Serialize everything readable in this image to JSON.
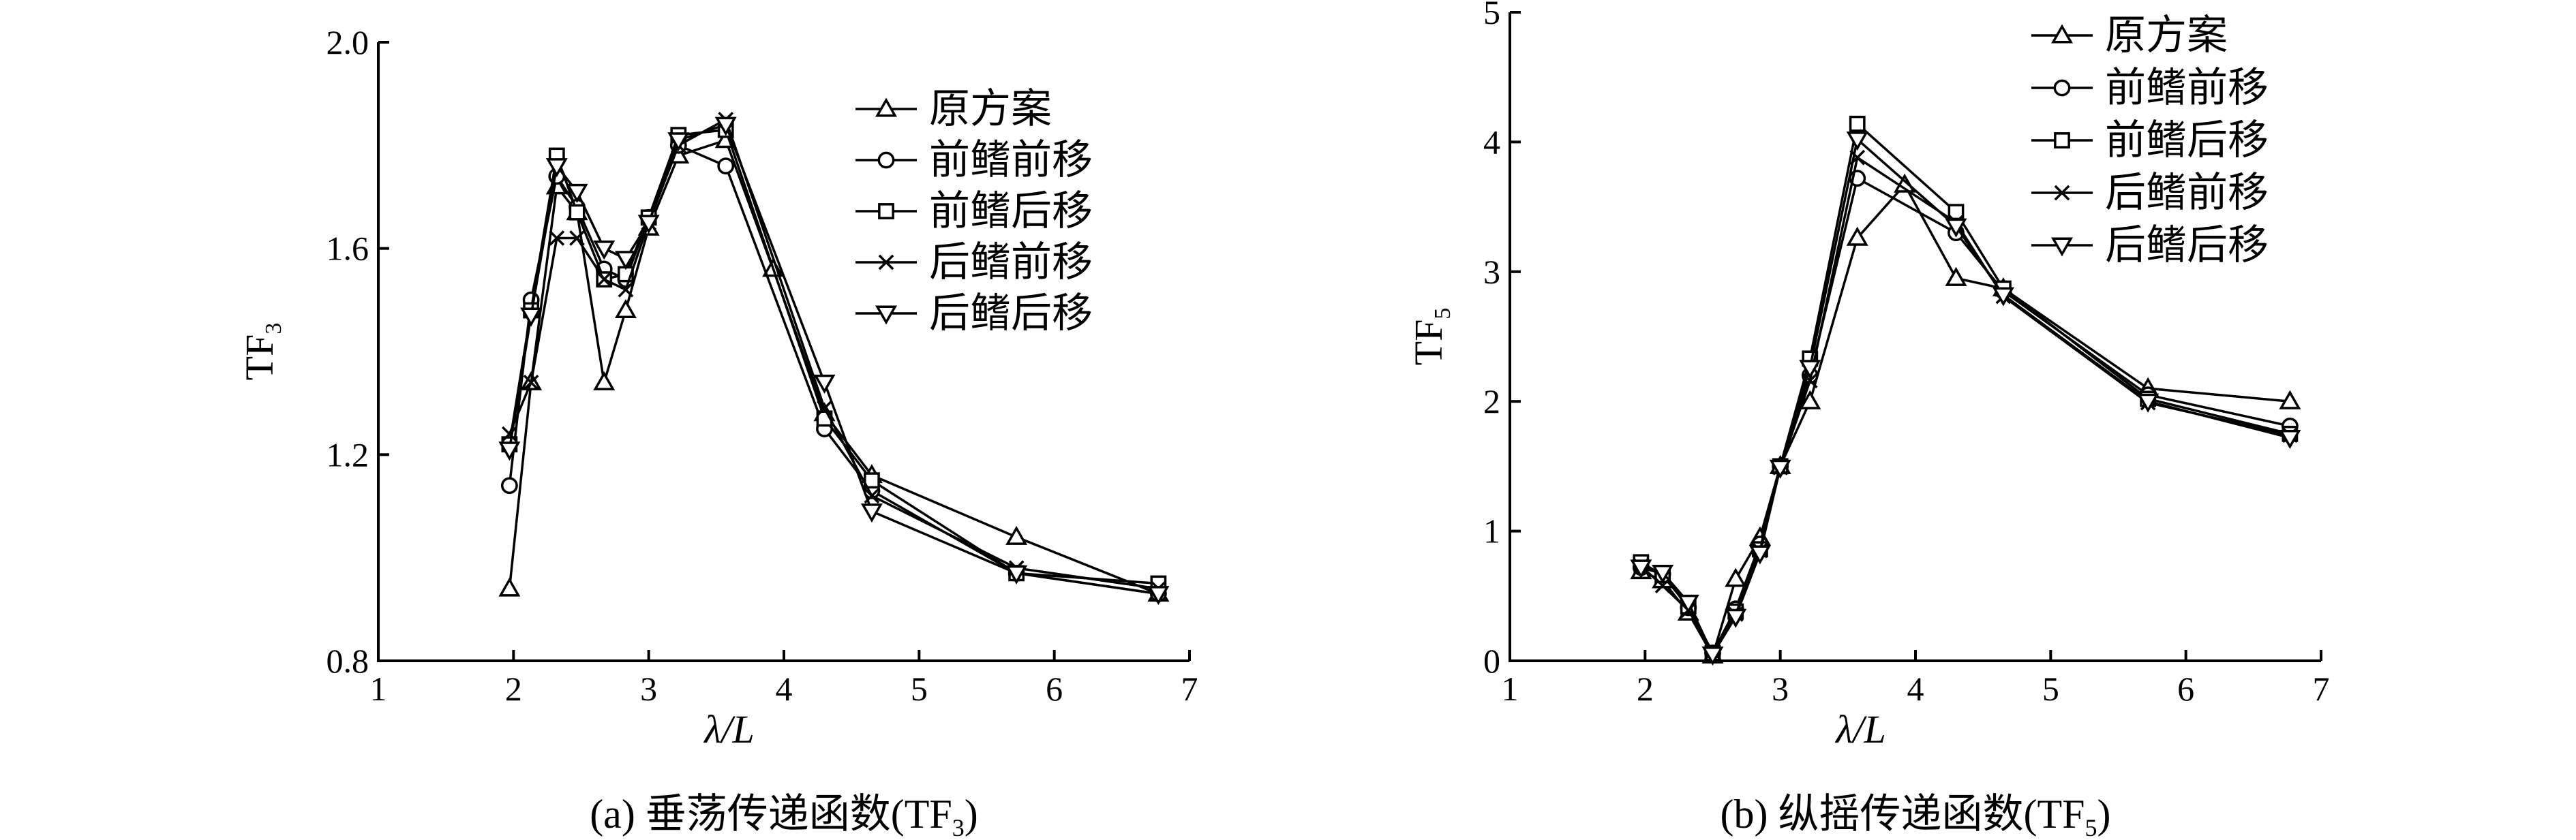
{
  "chart_data": [
    {
      "type": "line",
      "caption": "(a) 垂荡传递函数(TF3)",
      "caption_main": "(a) 垂荡传递函数(TF",
      "caption_sub": "3",
      "caption_end": ")",
      "xlabel": "λ/L",
      "ylabel": "TF3",
      "ylabel_main": "TF",
      "ylabel_sub": "3",
      "xlim": [
        1,
        7
      ],
      "ylim": [
        0.8,
        2.0
      ],
      "xticks": [
        1,
        2,
        3,
        4,
        5,
        6,
        7
      ],
      "yticks": [
        0.8,
        1.2,
        1.6,
        2.0
      ],
      "ytick_labels": [
        "0.8",
        "1.2",
        "1.6",
        "2.0"
      ],
      "legend_position": "top-right",
      "series": [
        {
          "name": "原方案",
          "marker": "triangle-up",
          "x": [
            1.97,
            2.13,
            2.32,
            2.47,
            2.67,
            2.83,
            3.0,
            3.22,
            3.57,
            3.92,
            4.3,
            4.65,
            5.72,
            6.77
          ],
          "y": [
            0.94,
            1.34,
            1.72,
            1.67,
            1.34,
            1.48,
            1.64,
            1.78,
            1.81,
            1.56,
            1.28,
            1.16,
            1.04,
            0.93
          ]
        },
        {
          "name": "前鳍前移",
          "marker": "circle",
          "x": [
            1.97,
            2.13,
            2.32,
            2.47,
            2.67,
            2.83,
            3.0,
            3.22,
            3.57,
            4.3,
            4.65,
            5.72,
            6.77
          ],
          "y": [
            1.14,
            1.5,
            1.74,
            1.68,
            1.56,
            1.54,
            1.66,
            1.8,
            1.76,
            1.25,
            1.13,
            0.97,
            0.93
          ]
        },
        {
          "name": "前鳍后移",
          "marker": "square",
          "x": [
            1.97,
            2.13,
            2.32,
            2.47,
            2.67,
            2.83,
            3.0,
            3.22,
            3.57,
            4.3,
            4.65,
            5.72,
            6.77
          ],
          "y": [
            1.22,
            1.48,
            1.78,
            1.67,
            1.54,
            1.55,
            1.66,
            1.82,
            1.83,
            1.27,
            1.15,
            0.97,
            0.95
          ]
        },
        {
          "name": "后鳍前移",
          "marker": "x",
          "x": [
            1.97,
            2.13,
            2.32,
            2.47,
            2.67,
            2.83,
            3.0,
            3.22,
            3.57,
            4.3,
            4.65,
            5.72,
            6.77
          ],
          "y": [
            1.24,
            1.34,
            1.62,
            1.62,
            1.54,
            1.52,
            1.65,
            1.8,
            1.85,
            1.29,
            1.12,
            0.98,
            0.94
          ]
        },
        {
          "name": "后鳍后移",
          "marker": "triangle-down",
          "x": [
            1.97,
            2.13,
            2.32,
            2.47,
            2.67,
            2.83,
            3.0,
            3.22,
            3.57,
            4.3,
            4.65,
            5.72,
            6.77
          ],
          "y": [
            1.21,
            1.47,
            1.76,
            1.71,
            1.6,
            1.58,
            1.65,
            1.81,
            1.84,
            1.34,
            1.09,
            0.97,
            0.93
          ]
        }
      ]
    },
    {
      "type": "line",
      "caption": "(b) 纵摇传递函数(TF5)",
      "caption_main": "(b) 纵摇传递函数(TF",
      "caption_sub": "5",
      "caption_end": ")",
      "xlabel": "λ/L",
      "ylabel": "TF5",
      "ylabel_main": "TF",
      "ylabel_sub": "5",
      "xlim": [
        1,
        7
      ],
      "ylim": [
        0,
        5
      ],
      "xticks": [
        1,
        2,
        3,
        4,
        5,
        6,
        7
      ],
      "yticks": [
        0,
        1,
        2,
        3,
        4,
        5
      ],
      "ytick_labels": [
        "0",
        "1",
        "2",
        "3",
        "4",
        "5"
      ],
      "legend_position": "top-right",
      "series": [
        {
          "name": "原方案",
          "marker": "triangle-up",
          "x": [
            1.97,
            2.13,
            2.32,
            2.5,
            2.67,
            2.85,
            3.0,
            3.22,
            3.57,
            3.92,
            4.3,
            4.65,
            5.72,
            6.77
          ],
          "y": [
            0.69,
            0.62,
            0.37,
            0.04,
            0.63,
            0.95,
            1.5,
            2.0,
            3.26,
            3.67,
            2.95,
            2.87,
            2.1,
            2.0
          ]
        },
        {
          "name": "前鳍前移",
          "marker": "circle",
          "x": [
            1.97,
            2.13,
            2.32,
            2.5,
            2.67,
            2.85,
            3.0,
            3.22,
            3.57,
            4.3,
            4.65,
            5.72,
            6.77
          ],
          "y": [
            0.72,
            0.67,
            0.41,
            0.06,
            0.4,
            0.9,
            1.5,
            2.2,
            3.72,
            3.3,
            2.85,
            2.05,
            1.81
          ]
        },
        {
          "name": "前鳍后移",
          "marker": "square",
          "x": [
            1.97,
            2.13,
            2.32,
            2.5,
            2.67,
            2.85,
            3.0,
            3.22,
            3.57,
            4.3,
            4.65,
            5.72,
            6.77
          ],
          "y": [
            0.76,
            0.66,
            0.42,
            0.06,
            0.38,
            0.86,
            1.5,
            2.33,
            4.14,
            3.46,
            2.87,
            2.02,
            1.75
          ]
        },
        {
          "name": "后鳍前移",
          "marker": "x",
          "x": [
            1.97,
            2.13,
            2.32,
            2.5,
            2.67,
            2.85,
            3.0,
            3.22,
            3.57,
            4.3,
            4.65,
            5.72,
            6.77
          ],
          "y": [
            0.73,
            0.58,
            0.39,
            0.07,
            0.36,
            0.85,
            1.49,
            2.16,
            3.88,
            3.38,
            2.81,
            1.99,
            1.74
          ]
        },
        {
          "name": "后鳍后移",
          "marker": "triangle-down",
          "x": [
            1.97,
            2.13,
            2.32,
            2.5,
            2.67,
            2.85,
            3.0,
            3.22,
            3.57,
            4.3,
            4.65,
            5.72,
            6.77
          ],
          "y": [
            0.72,
            0.68,
            0.45,
            0.05,
            0.34,
            0.83,
            1.49,
            2.26,
            4.02,
            3.35,
            2.82,
            2.0,
            1.72
          ]
        }
      ]
    }
  ]
}
